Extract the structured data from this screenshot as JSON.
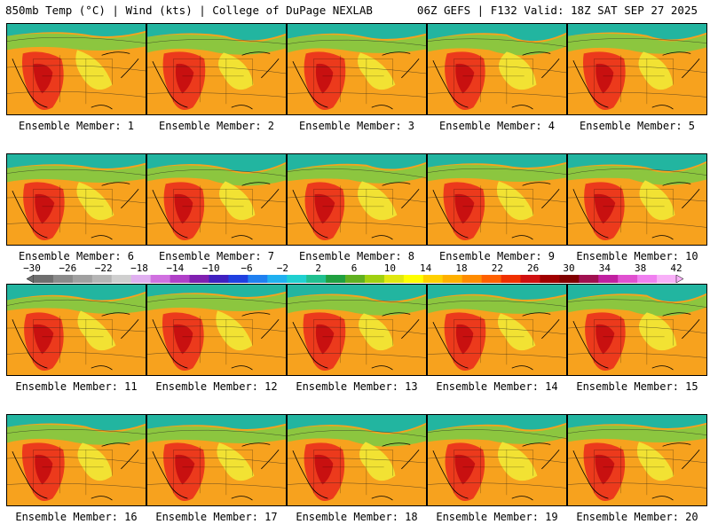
{
  "header": {
    "left_title": "850mb Temp (°C) | Wind (kts) | College of DuPage NEXLAB",
    "right_title": "06Z GEFS | F132 Valid: 18Z SAT SEP 27 2025"
  },
  "members": [
    {
      "label": "Ensemble Member: 1"
    },
    {
      "label": "Ensemble Member: 2"
    },
    {
      "label": "Ensemble Member: 3"
    },
    {
      "label": "Ensemble Member: 4"
    },
    {
      "label": "Ensemble Member: 5"
    },
    {
      "label": "Ensemble Member: 6"
    },
    {
      "label": "Ensemble Member: 7"
    },
    {
      "label": "Ensemble Member: 8"
    },
    {
      "label": "Ensemble Member: 9"
    },
    {
      "label": "Ensemble Member: 10"
    },
    {
      "label": "Ensemble Member: 11"
    },
    {
      "label": "Ensemble Member: 12"
    },
    {
      "label": "Ensemble Member: 13"
    },
    {
      "label": "Ensemble Member: 14"
    },
    {
      "label": "Ensemble Member: 15"
    },
    {
      "label": "Ensemble Member: 16"
    },
    {
      "label": "Ensemble Member: 17"
    },
    {
      "label": "Ensemble Member: 18"
    },
    {
      "label": "Ensemble Member: 19"
    },
    {
      "label": "Ensemble Member: 20"
    }
  ],
  "colorbar": {
    "labels": [
      "−30",
      "−26",
      "−22",
      "−18",
      "−14",
      "−10",
      "−6",
      "−2",
      "2",
      "6",
      "10",
      "14",
      "18",
      "22",
      "26",
      "30",
      "34",
      "38",
      "42"
    ],
    "colors": [
      "#6e6e6e",
      "#8a8a8a",
      "#a0a0a0",
      "#b5b5b5",
      "#cfcfcf",
      "#e0b0f0",
      "#d070e0",
      "#b040c8",
      "#8020b0",
      "#4020c0",
      "#2040e0",
      "#2080f0",
      "#20b0f0",
      "#20d0d0",
      "#20c090",
      "#20a040",
      "#60b020",
      "#a0d010",
      "#e0e810",
      "#ffff00",
      "#ffd000",
      "#ffb000",
      "#ff8c00",
      "#ff6000",
      "#f03000",
      "#d01010",
      "#a00000",
      "#800000",
      "#a01050",
      "#c020a0",
      "#e050d0",
      "#f080f0",
      "#f8b0f8"
    ]
  }
}
